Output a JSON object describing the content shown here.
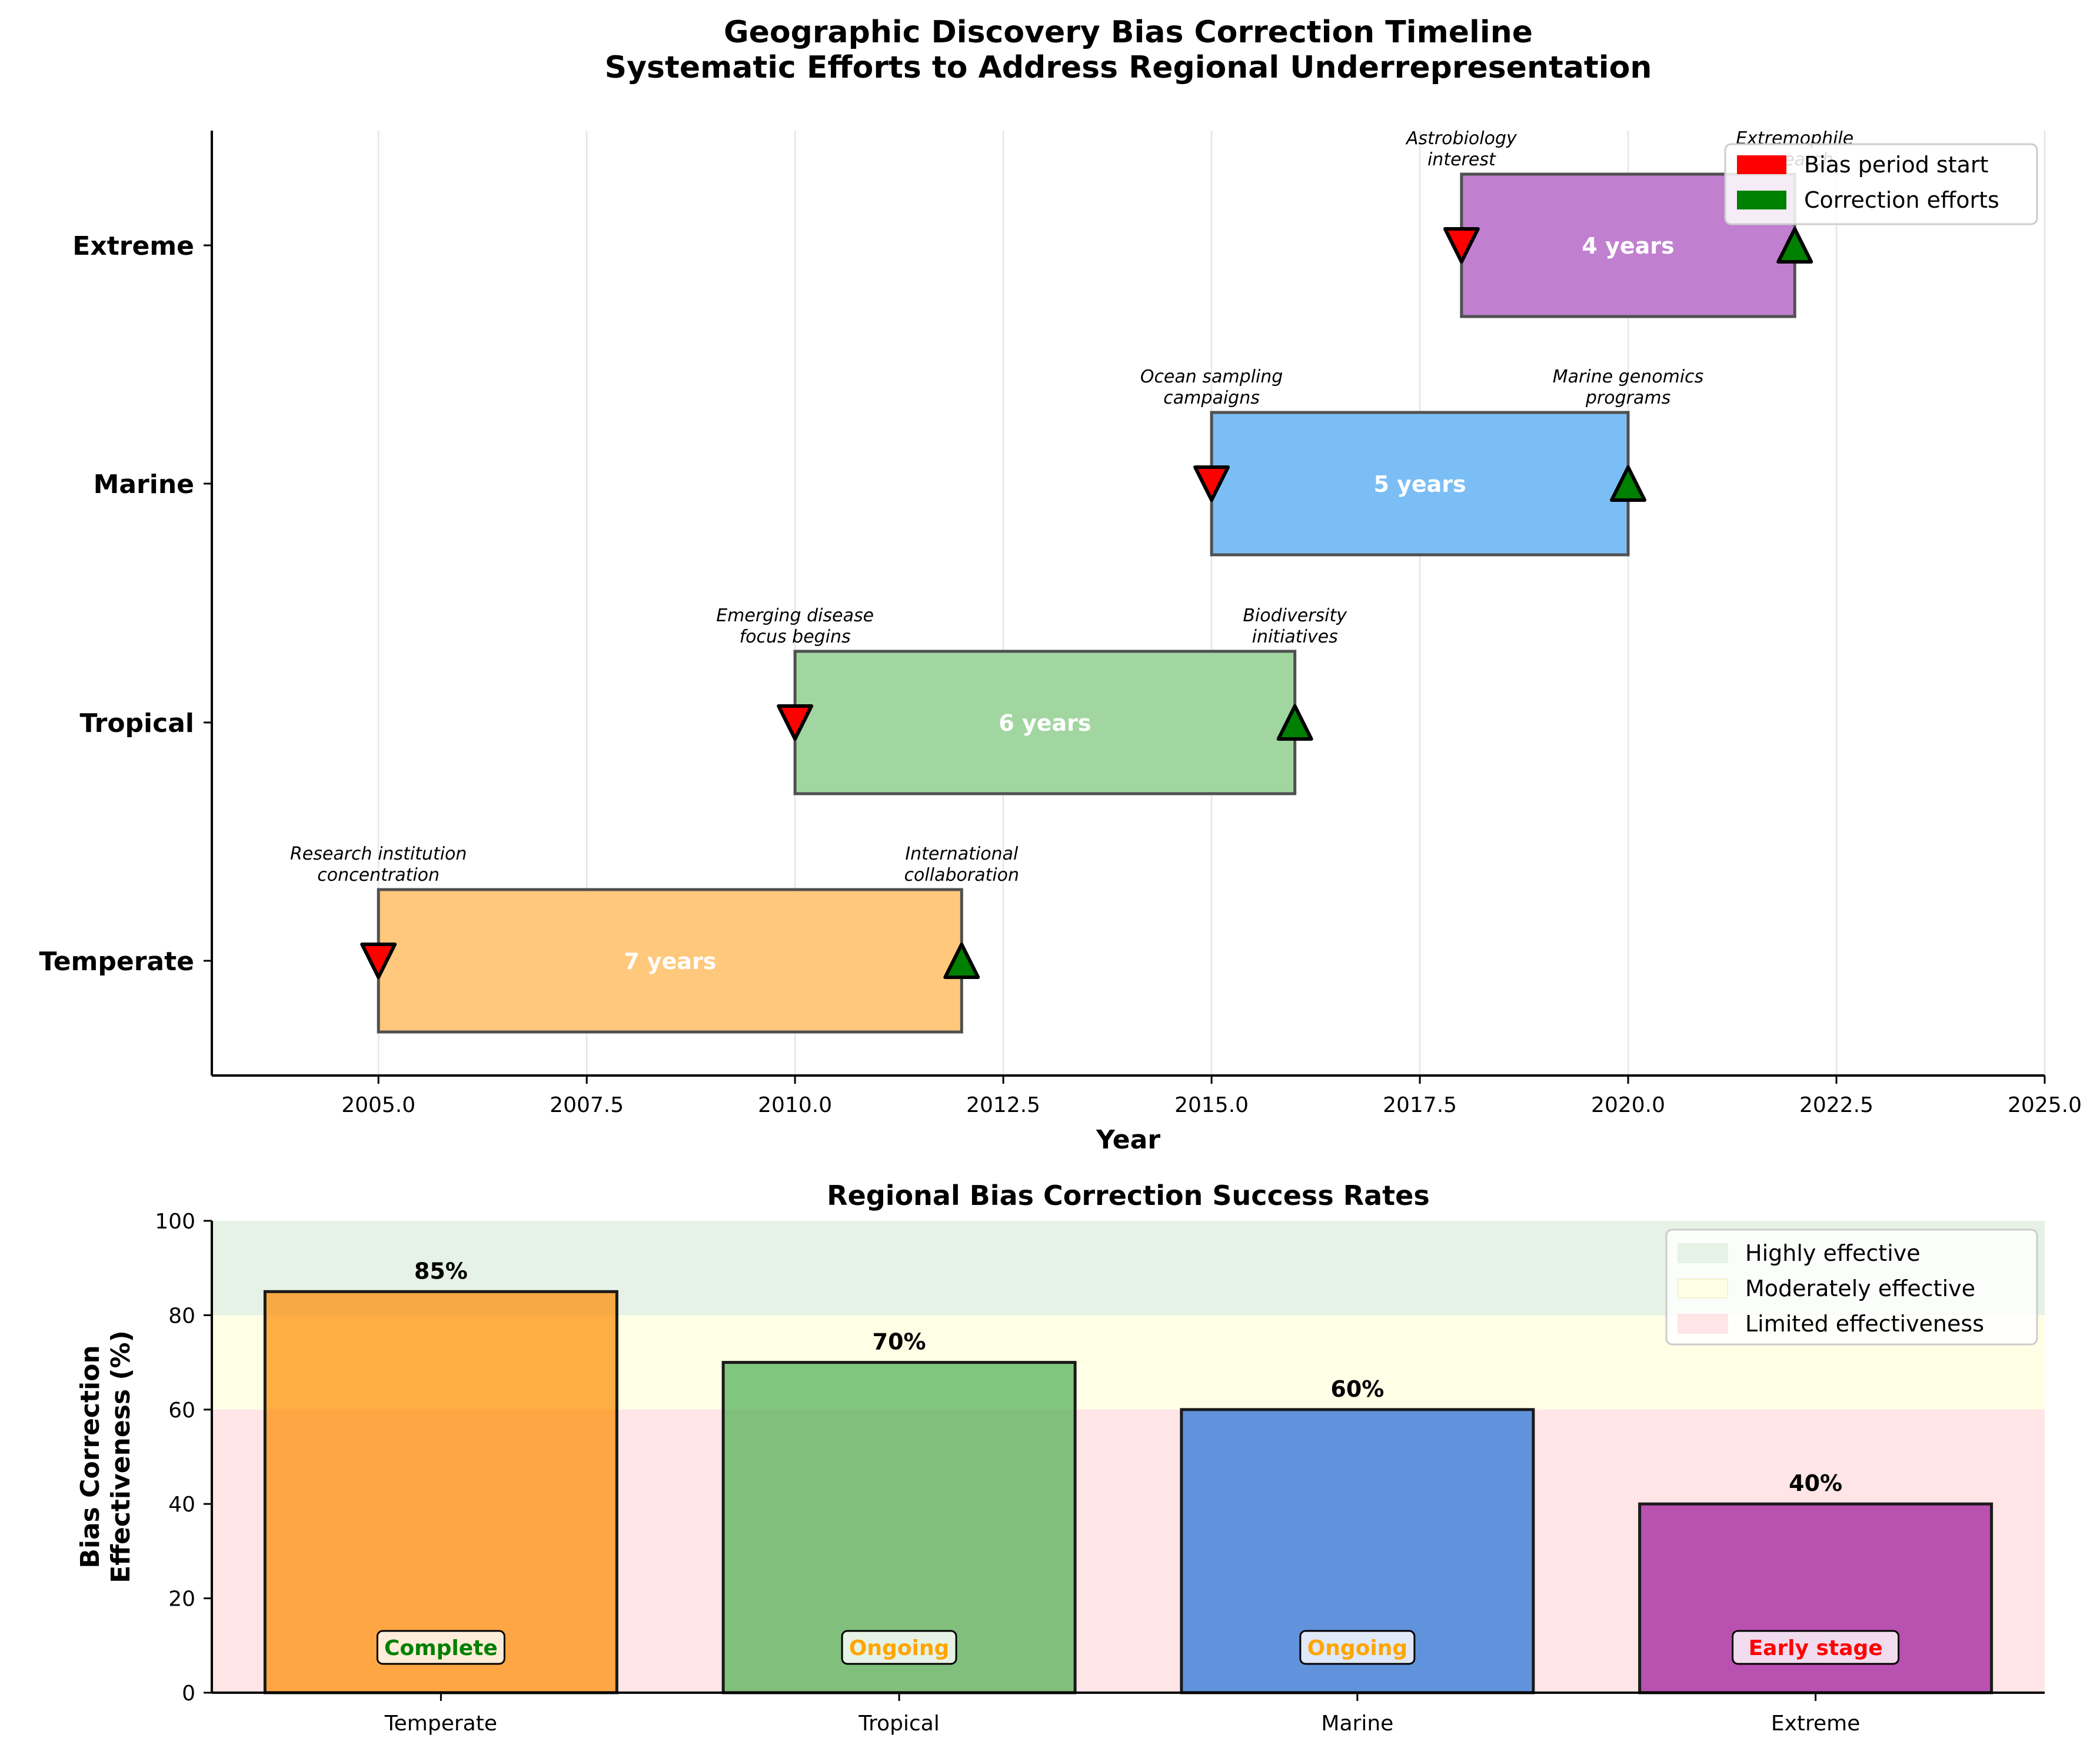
{
  "chart_data": [
    {
      "type": "gantt",
      "title": "Geographic Discovery Bias Correction Timeline\nSystematic Efforts to Address Regional Underrepresentation",
      "xlabel": "Year",
      "ylabel": "",
      "xlim": [
        2003,
        2025
      ],
      "xticks": [
        2005.0,
        2007.5,
        2010.0,
        2012.5,
        2015.0,
        2017.5,
        2020.0,
        2022.5,
        2025.0
      ],
      "xtick_labels": [
        "2005.0",
        "2007.5",
        "2010.0",
        "2012.5",
        "2015.0",
        "2017.5",
        "2020.0",
        "2022.5",
        "2025.0"
      ],
      "grid": "x",
      "legend_position": "top-right",
      "legend": [
        {
          "label": "Bias period start",
          "color": "#ff0000"
        },
        {
          "label": "Correction efforts",
          "color": "#008000"
        }
      ],
      "rows": [
        {
          "category": "Temperate",
          "start": 2005,
          "end": 2012,
          "duration_label": "7 years",
          "color": "#ffc87c",
          "start_note": "Research institution\nconcentration",
          "end_note": "International\ncollaboration"
        },
        {
          "category": "Tropical",
          "start": 2010,
          "end": 2016,
          "duration_label": "6 years",
          "color": "#a1d6a1",
          "start_note": "Emerging disease\nfocus begins",
          "end_note": "Biodiversity\ninitiatives"
        },
        {
          "category": "Marine",
          "start": 2015,
          "end": 2020,
          "duration_label": "5 years",
          "color": "#7bbef5",
          "start_note": "Ocean sampling\ncampaigns",
          "end_note": "Marine genomics\nprograms"
        },
        {
          "category": "Extreme",
          "start": 2018,
          "end": 2022,
          "duration_label": "4 years",
          "color": "#c17fd0",
          "start_note": "Astrobiology\ninterest",
          "end_note": "Extremophile\nresearch"
        }
      ]
    },
    {
      "type": "bar",
      "title": "Regional Bias Correction Success Rates",
      "xlabel": "",
      "ylabel": "Bias Correction\nEffectiveness (%)",
      "ylim": [
        0,
        100
      ],
      "yticks": [
        0,
        20,
        40,
        60,
        80,
        100
      ],
      "categories": [
        "Temperate",
        "Tropical",
        "Marine",
        "Extreme"
      ],
      "values": [
        85,
        70,
        60,
        40
      ],
      "value_labels": [
        "85%",
        "70%",
        "60%",
        "40%"
      ],
      "status": [
        "Complete",
        "Ongoing",
        "Ongoing",
        "Early stage"
      ],
      "status_colors": [
        "#008000",
        "#ffa500",
        "#ffa500",
        "#ff0000"
      ],
      "bar_colors": [
        "#ff8c00",
        "#4caf50",
        "#1e6fd9",
        "#9b139b"
      ],
      "legend_position": "top-right",
      "bands": [
        {
          "label": "Highly effective",
          "from": 80,
          "to": 100,
          "color": "#e5f2e5"
        },
        {
          "label": "Moderately effective",
          "from": 60,
          "to": 80,
          "color": "#ffffe6"
        },
        {
          "label": "Limited effectiveness",
          "from": 0,
          "to": 60,
          "color": "#ffe5e5"
        }
      ]
    }
  ]
}
